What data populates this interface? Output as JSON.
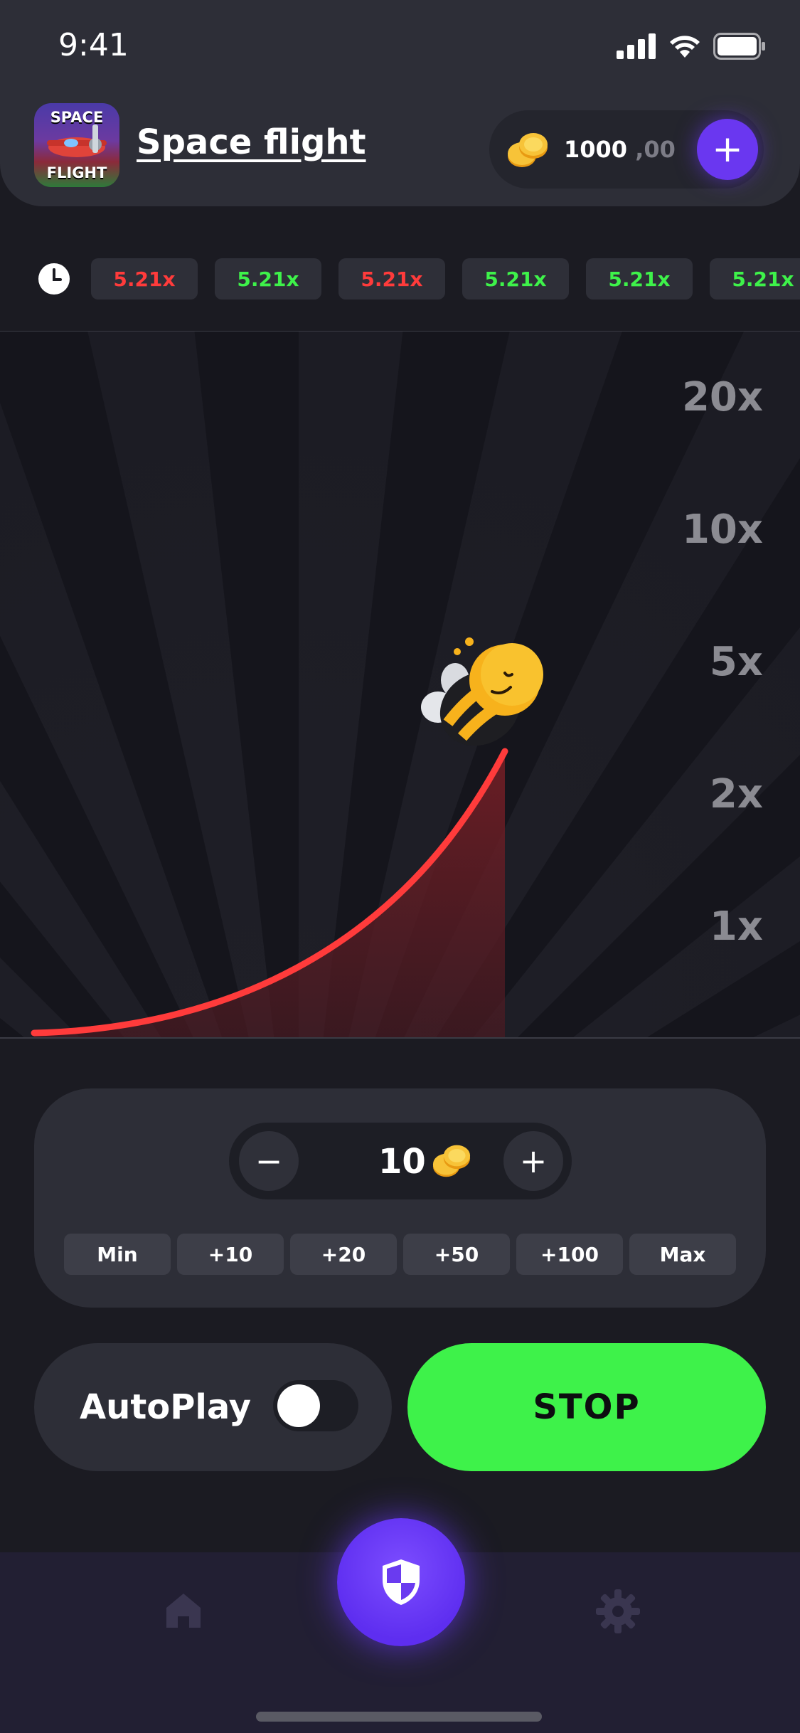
{
  "status_bar": {
    "time": "9:41"
  },
  "header": {
    "app_icon_text_top": "SPACE",
    "app_icon_text_bottom": "FLIGHT",
    "title": "Space flight",
    "balance_whole": "1000",
    "balance_cents": ",00",
    "add_label": "+"
  },
  "history": {
    "chips": [
      {
        "value": "5.21x",
        "status": "loss"
      },
      {
        "value": "5.21x",
        "status": "win"
      },
      {
        "value": "5.21x",
        "status": "loss"
      },
      {
        "value": "5.21x",
        "status": "win"
      },
      {
        "value": "5.21x",
        "status": "win"
      },
      {
        "value": "5.21x",
        "status": "win"
      }
    ],
    "colors": {
      "loss": "#ff3b3b",
      "win": "#3ef24a"
    }
  },
  "game": {
    "multiplier_labels": [
      "20x",
      "10x",
      "5x",
      "2x",
      "1x"
    ],
    "curve_color": "#ff3b3b"
  },
  "bet": {
    "minus_label": "−",
    "plus_label": "+",
    "amount": "10",
    "quick_options": [
      "Min",
      "+10",
      "+20",
      "+50",
      "+100",
      "Max"
    ]
  },
  "controls": {
    "autoplay_label": "AutoPlay",
    "autoplay_on": false,
    "stop_label": "STOP",
    "stop_color": "#3ef24a"
  },
  "nav": {
    "items": [
      "home-icon",
      "shield-icon",
      "gear-icon"
    ],
    "accent": "#6a37f0"
  }
}
